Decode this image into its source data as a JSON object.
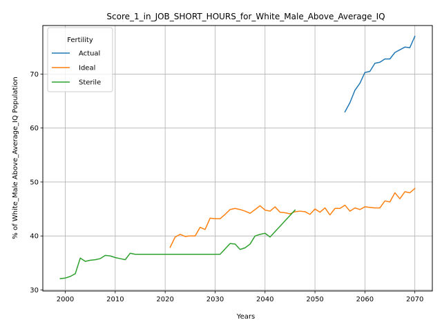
{
  "chart_data": {
    "type": "line",
    "title": "Score_1_in_JOB_SHORT_HOURS_for_White_Male_Above_Average_IQ",
    "xlabel": "Years",
    "ylabel": "% of White_Male Above_Average_IQ Population",
    "xlim": [
      1995.5,
      2073.5
    ],
    "ylim": [
      29.8,
      79.0
    ],
    "x_ticks": [
      2000,
      2010,
      2020,
      2030,
      2040,
      2050,
      2060,
      2070
    ],
    "y_ticks": [
      30,
      40,
      50,
      60,
      70
    ],
    "grid": true,
    "legend": {
      "title": "Fertility",
      "placement": "upper-left"
    },
    "series": [
      {
        "name": "Actual",
        "color": "#1f77b4",
        "x": [
          2056,
          2057,
          2058,
          2059,
          2060,
          2061,
          2062,
          2063,
          2064,
          2065,
          2066,
          2067,
          2068,
          2069,
          2070
        ],
        "y": [
          63.0,
          64.7,
          67.0,
          68.3,
          70.3,
          70.5,
          72.0,
          72.2,
          72.8,
          72.8,
          74.0,
          74.5,
          75.0,
          74.9,
          77.0
        ]
      },
      {
        "name": "Ideal",
        "color": "#ff7f0e",
        "x": [
          2021,
          2022,
          2023,
          2024,
          2025,
          2026,
          2027,
          2028,
          2029,
          2030,
          2031,
          2032,
          2033,
          2034,
          2035,
          2036,
          2037,
          2038,
          2039,
          2040,
          2041,
          2042,
          2043,
          2044,
          2045,
          2046,
          2047,
          2048,
          2049,
          2050,
          2051,
          2052,
          2053,
          2054,
          2055,
          2056,
          2057,
          2058,
          2059,
          2060,
          2061,
          2062,
          2063,
          2064,
          2065,
          2066,
          2067,
          2068,
          2069,
          2070
        ],
        "y": [
          37.9,
          39.8,
          40.3,
          39.9,
          40.0,
          40.0,
          41.6,
          41.2,
          43.3,
          43.2,
          43.2,
          44.0,
          44.9,
          45.1,
          44.9,
          44.6,
          44.2,
          44.9,
          45.6,
          44.8,
          44.6,
          45.4,
          44.4,
          44.3,
          44.1,
          44.5,
          44.6,
          44.5,
          44.0,
          45.0,
          44.4,
          45.2,
          43.9,
          45.1,
          45.1,
          45.7,
          44.6,
          45.2,
          44.9,
          45.4,
          45.3,
          45.2,
          45.2,
          46.5,
          46.3,
          48.0,
          46.9,
          48.2,
          48.0,
          48.8
        ]
      },
      {
        "name": "Sterile",
        "color": "#2ca02c",
        "x": [
          1999,
          2000,
          2001,
          2002,
          2003,
          2004,
          2005,
          2006,
          2007,
          2008,
          2009,
          2010,
          2011,
          2012,
          2013,
          2014,
          2015,
          2016,
          2017,
          2018,
          2019,
          2020,
          2021,
          2022,
          2023,
          2024,
          2025,
          2026,
          2027,
          2028,
          2029,
          2030,
          2031,
          2032,
          2033,
          2034,
          2035,
          2036,
          2037,
          2038,
          2039,
          2040,
          2041,
          2042,
          2043,
          2044,
          2045,
          2046
        ],
        "y": [
          32.1,
          32.2,
          32.5,
          33.0,
          35.9,
          35.3,
          35.5,
          35.6,
          35.8,
          36.4,
          36.3,
          36.0,
          35.8,
          35.6,
          36.8,
          36.6,
          36.6,
          36.6,
          36.6,
          36.6,
          36.6,
          36.6,
          36.6,
          36.6,
          36.6,
          36.6,
          36.6,
          36.6,
          36.6,
          36.6,
          36.6,
          36.6,
          36.6,
          37.6,
          38.6,
          38.5,
          37.5,
          37.8,
          38.5,
          40.0,
          40.3,
          40.5,
          39.8,
          40.8,
          41.8,
          42.8,
          43.8,
          44.8
        ]
      }
    ]
  }
}
